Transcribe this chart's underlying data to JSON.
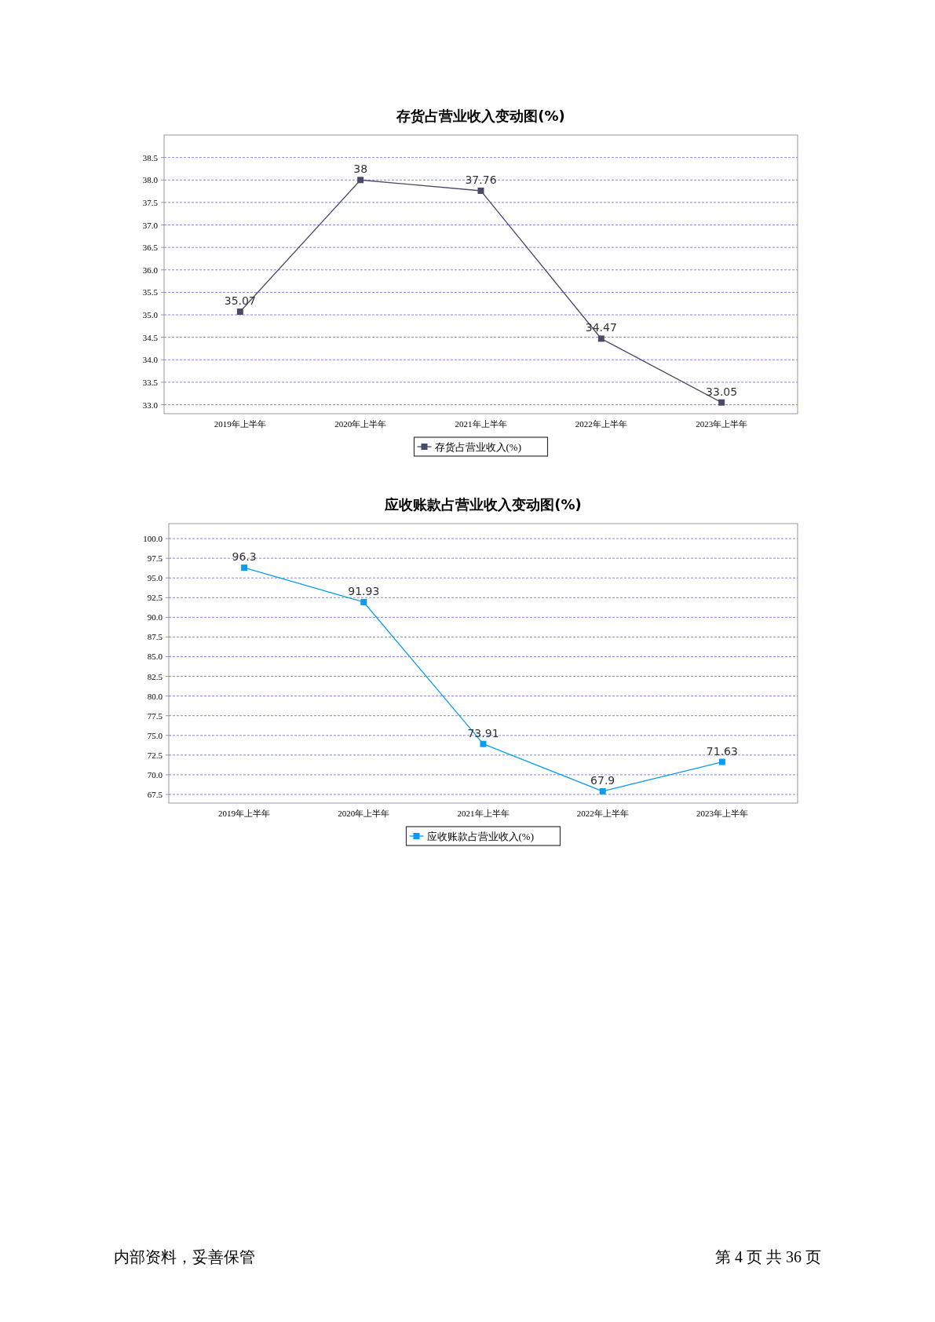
{
  "chart_data": [
    {
      "type": "line",
      "title": "存货占营业收入变动图(%)",
      "categories": [
        "2019年上半年",
        "2020年上半年",
        "2021年上半年",
        "2022年上半年",
        "2023年上半年"
      ],
      "series": [
        {
          "name": "存货占营业收入(%)",
          "color": "#4a4a6a",
          "values": [
            35.07,
            38,
            37.76,
            34.47,
            33.05
          ]
        }
      ],
      "ylim": [
        32.8,
        39.0
      ],
      "yticks": [
        {
          "value": 33,
          "label": "33.0"
        },
        33.5,
        {
          "value": 34,
          "label": "34.0"
        },
        34.5,
        {
          "value": 35,
          "label": "35.0"
        },
        35.5,
        {
          "value": 36,
          "label": "36.0"
        },
        36.5,
        {
          "value": 37,
          "label": "37.0"
        },
        37.5,
        {
          "value": 38,
          "label": "38.0"
        },
        38.5
      ],
      "grid": "y",
      "legend": "bottom",
      "marker": "square",
      "line_style": "solid",
      "data_labels": true
    },
    {
      "type": "line",
      "title": "应收账款占营业收入变动图(%)",
      "categories": [
        "2019年上半年",
        "2020年上半年",
        "2021年上半年",
        "2022年上半年",
        "2023年上半年"
      ],
      "series": [
        {
          "name": "应收账款占营业收入(%)",
          "color": "#0a9bf5",
          "values": [
            96.3,
            91.93,
            73.91,
            67.9,
            71.63
          ]
        }
      ],
      "ylim": [
        66.4,
        101.9
      ],
      "yticks": [
        67.5,
        {
          "value": 70,
          "label": "70.0"
        },
        72.5,
        {
          "value": 75,
          "label": "75.0"
        },
        77.5,
        {
          "value": 80,
          "label": "80.0"
        },
        82.5,
        {
          "value": 85,
          "label": "85.0"
        },
        87.5,
        {
          "value": 90,
          "label": "90.0"
        },
        92.5,
        {
          "value": 95,
          "label": "95.0"
        },
        97.5,
        {
          "value": 100,
          "label": "100.0"
        }
      ],
      "grid": "y",
      "legend": "bottom",
      "marker": "square",
      "line_style": "solid",
      "data_labels": true,
      "annotations": [
        "内部资料，妥善保管",
        "第 4 页   共 36 页"
      ]
    }
  ]
}
